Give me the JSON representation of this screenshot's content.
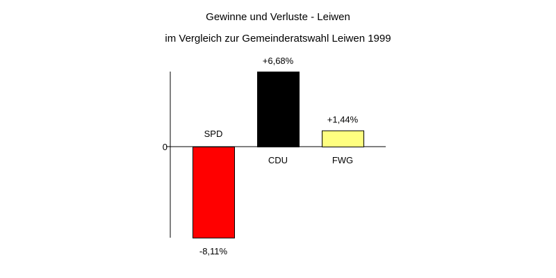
{
  "chart_data": {
    "type": "bar",
    "title": "Gewinne und Verluste - Leiwen",
    "subtitle": "im Vergleich zur Gemeinderatswahl Leiwen 1999",
    "categories": [
      "SPD",
      "CDU",
      "FWG"
    ],
    "values": [
      -8.11,
      6.68,
      1.44
    ],
    "value_labels": [
      "-8,11%",
      "+6,68%",
      "+1,44%"
    ],
    "colors": [
      "#ff0000",
      "#000000",
      "#ffff80"
    ],
    "ylim": [
      -8.11,
      6.68
    ],
    "yticks": [
      {
        "value": 0,
        "label": "0"
      }
    ],
    "grid": false,
    "legend": "none"
  }
}
